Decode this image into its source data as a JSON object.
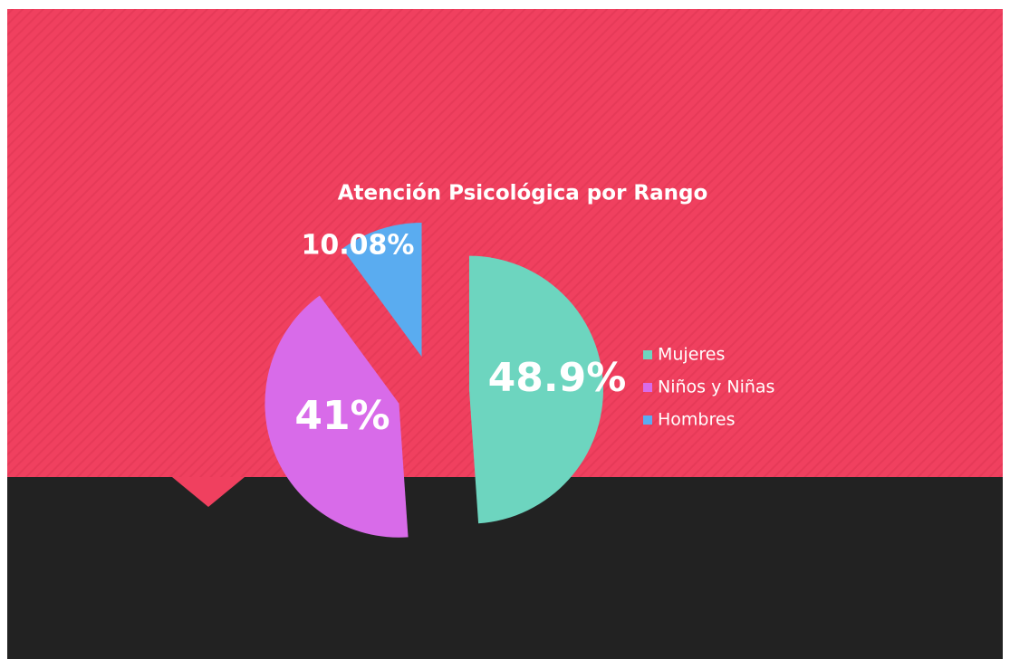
{
  "chart_data": {
    "type": "pie",
    "title": "Atención Psicológica por Rango",
    "categories": [
      "Mujeres",
      "Niños y Niñas",
      "Hombres"
    ],
    "values": [
      48.9,
      41,
      10.08
    ],
    "value_labels": [
      "48.9%",
      "41%",
      "10.08%"
    ],
    "colors": [
      "#6dd5bf",
      "#d86be9",
      "#5aacf0"
    ]
  }
}
